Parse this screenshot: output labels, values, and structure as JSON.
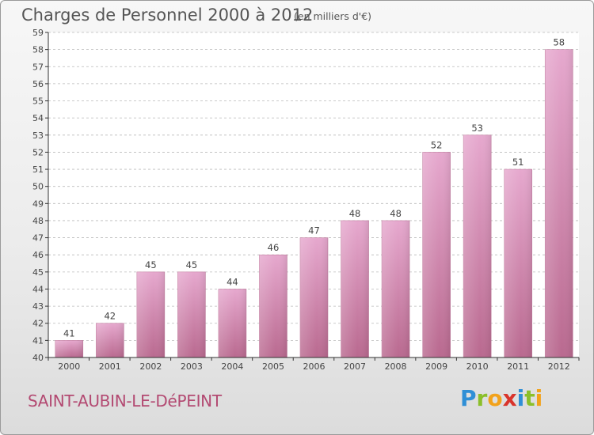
{
  "header": {
    "title": "Charges de Personnel 2000 à 2012",
    "subtitle": "(en milliers d'€)"
  },
  "footer": {
    "city": "SAINT-AUBIN-LE-DéPEINT",
    "logo_letters": [
      {
        "char": "P",
        "color": "#2f8fd6"
      },
      {
        "char": "r",
        "color": "#8bbf2a"
      },
      {
        "char": "o",
        "color": "#f2a21b"
      },
      {
        "char": "x",
        "color": "#d9342b"
      },
      {
        "char": "i",
        "color": "#2f8fd6"
      },
      {
        "char": "t",
        "color": "#8bbf2a"
      },
      {
        "char": "i",
        "color": "#f2a21b"
      }
    ]
  },
  "colors": {
    "bar_light": "#e6a8ce",
    "bar_dark": "#b9698f",
    "axis": "#333333",
    "grid": "#bbbbbb"
  },
  "chart_data": {
    "type": "bar",
    "title": "Charges de Personnel 2000 à 2012",
    "subtitle": "(en milliers d'€)",
    "xlabel": "",
    "ylabel": "",
    "categories": [
      "2000",
      "2001",
      "2002",
      "2003",
      "2004",
      "2005",
      "2006",
      "2007",
      "2008",
      "2009",
      "2010",
      "2011",
      "2012"
    ],
    "values": [
      41,
      42,
      45,
      45,
      44,
      46,
      47,
      48,
      48,
      52,
      53,
      51,
      58
    ],
    "ylim": [
      40,
      59
    ],
    "yticks": [
      40,
      41,
      42,
      43,
      44,
      45,
      46,
      47,
      48,
      49,
      50,
      51,
      52,
      53,
      54,
      55,
      56,
      57,
      58,
      59
    ],
    "grid": "horizontal dashed"
  }
}
